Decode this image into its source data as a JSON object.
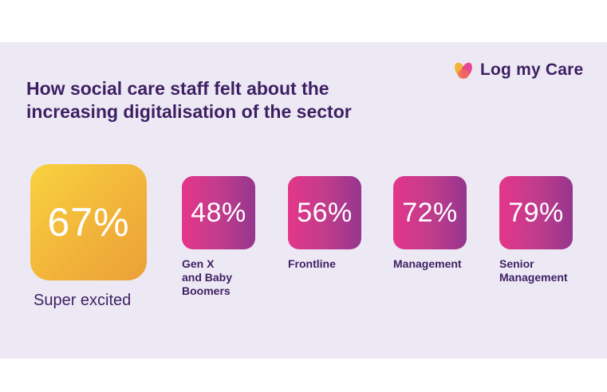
{
  "brand": {
    "name": "Log my Care",
    "colors": {
      "text_dark_purple": "#3e1f63",
      "panel_background": "#ede9f4",
      "highlight_yellow": "#f2b43a",
      "stat_magenta": "#e4368a",
      "stat_purple": "#96368e"
    },
    "logo_icon": "petal-flower-icon"
  },
  "title": {
    "line1": "How social care staff felt about the",
    "line2": "increasing digitalisation of the sector"
  },
  "highlight": {
    "value": "67%",
    "label": "Super excited"
  },
  "stats": [
    {
      "value": "48%",
      "label": "Gen X\nand Baby\nBoomers"
    },
    {
      "value": "56%",
      "label": "Frontline"
    },
    {
      "value": "72%",
      "label": "Management"
    },
    {
      "value": "79%",
      "label": "Senior\nManagement"
    }
  ]
}
